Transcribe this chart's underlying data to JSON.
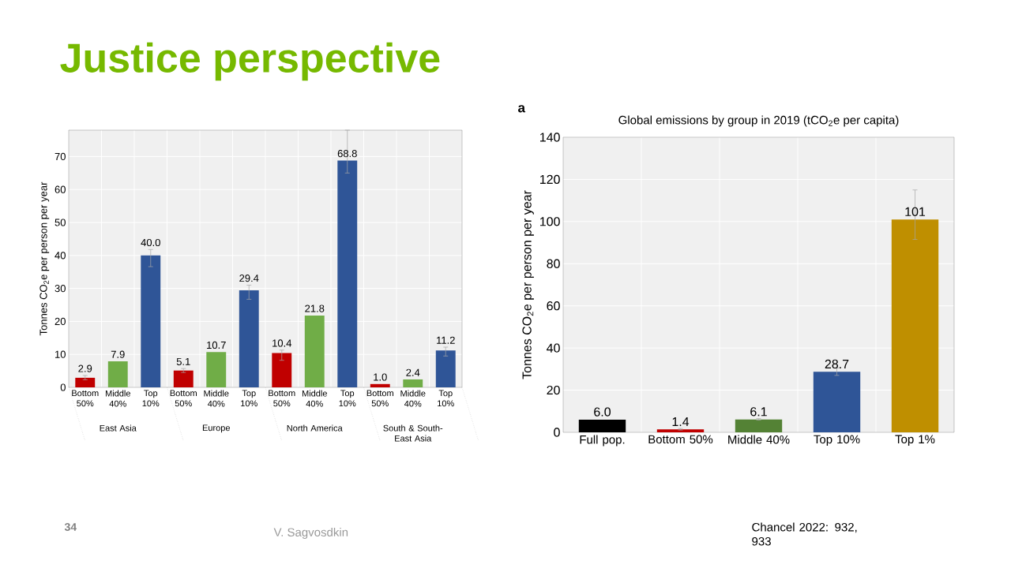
{
  "chart_data": [
    {
      "type": "bar",
      "title": "Justice perspective",
      "ylabel": "Tonnes CO$_{2}$e per person per year",
      "categories": [
        "Bottom 50%",
        "Middle 40%",
        "Top 10%",
        "Bottom 50%",
        "Middle 40%",
        "Top 10%",
        "Bottom 50%",
        "Middle 40%",
        "Top 10%",
        "Bottom 50%",
        "Middle 40%",
        "Top 10%"
      ],
      "values": [
        2.9,
        7.9,
        40.0,
        5.1,
        10.7,
        29.4,
        10.4,
        21.8,
        68.8,
        1.0,
        2.4,
        11.2
      ],
      "colors": [
        "#c00000",
        "#70ad47",
        "#2f5597",
        "#c00000",
        "#70ad47",
        "#2f5597",
        "#c00000",
        "#70ad47",
        "#2f5597",
        "#c00000",
        "#70ad47",
        "#2f5597"
      ],
      "errors": [
        [
          2.3,
          3.6
        ],
        null,
        [
          36.6,
          41.8
        ],
        [
          4.5,
          5.7
        ],
        null,
        [
          26.7,
          31.0
        ],
        [
          8.2,
          11.3
        ],
        null,
        [
          65,
          78
        ],
        null,
        null,
        [
          9.5,
          12.2
        ]
      ],
      "annotations": [
        "East Asia",
        "Europe",
        "North America",
        "South & South-East Asia"
      ],
      "value_labels": [
        "2.9",
        "7.9",
        "40.0",
        "5.1",
        "10.7",
        "29.4",
        "10.4",
        "21.8",
        "68.8",
        "1.0",
        "2.4",
        "11.2"
      ],
      "ylim": [
        0,
        78
      ],
      "yticks": [
        0,
        10,
        20,
        30,
        40,
        50,
        60,
        70
      ],
      "grid": true
    },
    {
      "type": "bar",
      "title": "Global emissions by group in 2019 (tCO$_{2}$e per capita)",
      "ylabel": "Tonnes CO$_{2}$e per person per year",
      "categories": [
        "Full pop.",
        "Bottom 50%",
        "Middle 40%",
        "Top 10%",
        "Top 1%"
      ],
      "values": [
        6.0,
        1.4,
        6.1,
        28.7,
        101
      ],
      "colors": [
        "#000000",
        "#c00000",
        "#548235",
        "#2f5597",
        "#bf8f00"
      ],
      "errors": [
        null,
        [
          1.1,
          1.8
        ],
        [
          5.8,
          6.5
        ],
        [
          27,
          30.5
        ],
        [
          91.5,
          115
        ]
      ],
      "annotations": [
        "a",
        "34",
        "V. Sagvosdkin",
        "Chancel 2022: 932, 933"
      ],
      "value_labels": [
        "6.0",
        "1.4",
        "6.1",
        "28.7",
        "101"
      ],
      "ylim": [
        0,
        140
      ],
      "yticks": [
        0,
        20,
        40,
        60,
        80,
        100,
        120,
        140
      ],
      "grid": true
    }
  ]
}
